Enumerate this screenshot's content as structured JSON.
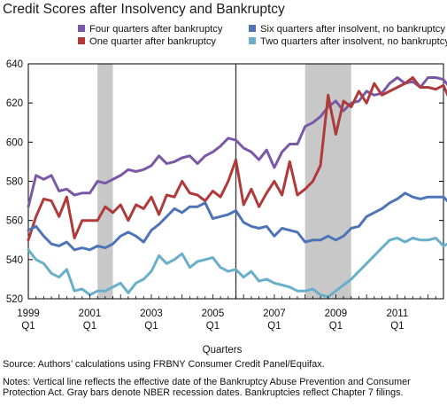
{
  "chart_data": {
    "type": "line",
    "title": "Credit Scores after Insolvency and Bankruptcy",
    "xlabel": "Quarters",
    "ylabel": "",
    "xlim": [
      1999.0,
      2012.5
    ],
    "ylim": [
      520,
      640
    ],
    "yticks": [
      520,
      540,
      560,
      580,
      600,
      620,
      640
    ],
    "xticks": [
      {
        "year": "1999",
        "quarter": "Q1"
      },
      {
        "year": "2001",
        "quarter": "Q1"
      },
      {
        "year": "2003",
        "quarter": "Q1"
      },
      {
        "year": "2005",
        "quarter": "Q1"
      },
      {
        "year": "2007",
        "quarter": "Q1"
      },
      {
        "year": "2009",
        "quarter": "Q1"
      },
      {
        "year": "2011",
        "quarter": "Q1"
      }
    ],
    "recessions": [
      [
        2001.25,
        2001.75
      ],
      [
        2008.0,
        2009.5
      ]
    ],
    "policy_line": 2005.75,
    "legend_position": "top",
    "x_start": "1999 Q1",
    "series": [
      {
        "name": "Four quarters after bankruptcy",
        "color": "#7b58a6",
        "values": [
          567,
          583,
          581,
          583,
          575,
          576,
          573,
          574,
          574,
          580,
          579,
          581,
          583,
          586,
          585,
          586,
          588,
          593,
          589,
          590,
          592,
          593,
          589,
          593,
          595,
          598,
          602,
          601,
          597,
          595,
          591,
          596,
          587,
          595,
          599,
          599,
          608,
          610,
          613,
          618,
          621,
          616,
          620,
          621,
          626,
          624,
          625,
          630,
          633,
          630,
          631,
          628,
          633,
          633,
          632,
          627,
          627,
          630,
          625
        ]
      },
      {
        "name": "One quarter after bankruptcy",
        "color": "#b03a3a",
        "values": [
          550,
          562,
          571,
          570,
          562,
          572,
          551,
          560,
          560,
          560,
          567,
          564,
          568,
          560,
          568,
          566,
          572,
          563,
          573,
          572,
          580,
          574,
          573,
          570,
          575,
          572,
          580,
          591,
          568,
          576,
          567,
          574,
          580,
          573,
          590,
          573,
          576,
          580,
          588,
          624,
          604,
          621,
          618,
          626,
          620,
          630,
          624,
          626,
          628,
          630,
          633,
          628,
          628,
          627,
          629,
          620,
          626,
          625,
          623
        ]
      },
      {
        "name": "Six quarters after insolvent, no bankruptcy",
        "color": "#4e74b8",
        "values": [
          555,
          557,
          552,
          548,
          547,
          549,
          545,
          546,
          545,
          547,
          546,
          548,
          552,
          554,
          552,
          549,
          555,
          558,
          562,
          566,
          564,
          567,
          567,
          569,
          561,
          562,
          563,
          565,
          559,
          557,
          556,
          557,
          552,
          556,
          555,
          554,
          549,
          550,
          550,
          552,
          550,
          552,
          556,
          557,
          562,
          564,
          566,
          569,
          571,
          574,
          572,
          571,
          572,
          572,
          572,
          568,
          570,
          571,
          573
        ]
      },
      {
        "name": "Two quarters after insolvent, no bankruptcy",
        "color": "#6aafca",
        "values": [
          545,
          540,
          538,
          533,
          531,
          535,
          524,
          525,
          522,
          524,
          524,
          526,
          528,
          523,
          528,
          530,
          534,
          542,
          538,
          540,
          543,
          536,
          539,
          540,
          541,
          536,
          534,
          535,
          531,
          534,
          529,
          530,
          528,
          527,
          526,
          524,
          524,
          525,
          522,
          521,
          524,
          527,
          530,
          534,
          538,
          542,
          546,
          550,
          551,
          549,
          551,
          550,
          550,
          551,
          547,
          549,
          547,
          549,
          549
        ]
      }
    ]
  },
  "notes": {
    "source": "Source: Authors’ calculations using FRBNY Consumer Credit Panel/Equifax.",
    "note": "Notes: Vertical line reflects the effective date of the Bankruptcy Abuse Prevention and Consumer Protection Act. Gray bars denote NBER recession dates. Bankruptcies reflect Chapter 7 filings."
  }
}
